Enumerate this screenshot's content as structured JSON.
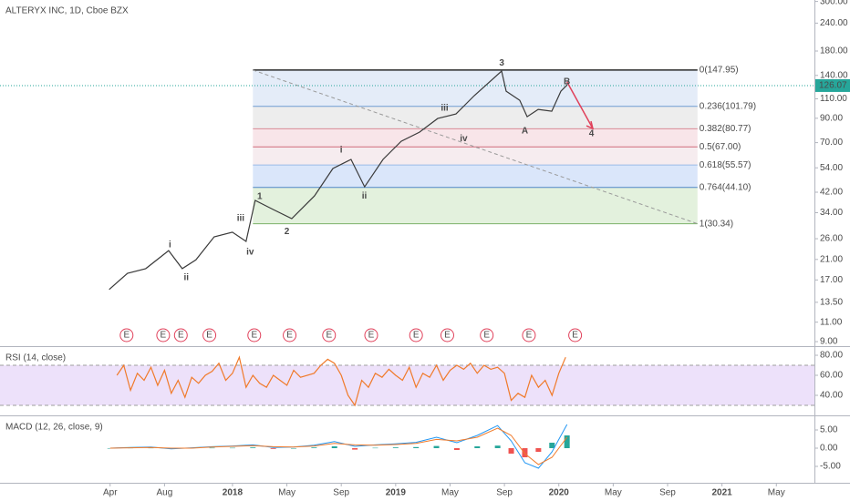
{
  "chart_data": [
    {
      "type": "line",
      "title": "ALTERYX INC, 1D, Cboe BZX",
      "log": true,
      "color": "#3a3a3a",
      "xlim": [
        -8.1,
        51.8
      ],
      "xticks": [
        {
          "value": 0,
          "label": "Apr"
        },
        {
          "value": 4,
          "label": "Aug"
        },
        {
          "value": 9,
          "label": "2018"
        },
        {
          "value": 13,
          "label": "May"
        },
        {
          "value": 17,
          "label": "Sep"
        },
        {
          "value": 21,
          "label": "2019"
        },
        {
          "value": 25,
          "label": "May"
        },
        {
          "value": 29,
          "label": "Sep"
        },
        {
          "value": 33,
          "label": "2020"
        },
        {
          "value": 37,
          "label": "May"
        },
        {
          "value": 41,
          "label": "Sep"
        },
        {
          "value": 45,
          "label": "2021"
        },
        {
          "value": 49,
          "label": "May"
        }
      ],
      "ylim": [
        8.59,
        304.6
      ],
      "yticks": [
        {
          "value": 9,
          "label": "9.00"
        },
        {
          "value": 11,
          "label": "11.00"
        },
        {
          "value": 13.5,
          "label": "13.50"
        },
        {
          "value": 17,
          "label": "17.00"
        },
        {
          "value": 21,
          "label": "21.00"
        },
        {
          "value": 26,
          "label": "26.00"
        },
        {
          "value": 34,
          "label": "34.00"
        },
        {
          "value": 42,
          "label": "42.00"
        },
        {
          "value": 54,
          "label": "54.00"
        },
        {
          "value": 70,
          "label": "70.00"
        },
        {
          "value": 90,
          "label": "90.00"
        },
        {
          "value": 110,
          "label": "110.00"
        },
        {
          "value": 140,
          "label": "140.00"
        },
        {
          "value": 180,
          "label": "180.00"
        },
        {
          "value": 240,
          "label": "240.00"
        },
        {
          "value": 300,
          "label": "300.00"
        }
      ],
      "x": [
        -0.07,
        1.28,
        2.62,
        4.3,
        5.3,
        6.31,
        7.65,
        8.99,
        10.0,
        10.67,
        12.01,
        13.36,
        15.03,
        16.38,
        17.72,
        18.72,
        20.07,
        21.41,
        22.75,
        24.09,
        25.44,
        26.78,
        28.79,
        29.13,
        30.13,
        30.67,
        31.48,
        32.48,
        33.15,
        33.62
      ],
      "values": [
        15.4,
        18.2,
        19.1,
        23.0,
        19.1,
        20.9,
        26.5,
        27.8,
        25.3,
        38.6,
        35.1,
        32.0,
        40.4,
        53.6,
        58.9,
        44.4,
        58.9,
        71.0,
        78.0,
        89.8,
        94.1,
        113.6,
        146.4,
        119.0,
        108.3,
        91.5,
        98.6,
        96.8,
        119.0,
        127.1
      ],
      "last_price": {
        "value": 126.07,
        "color": "#26a69a"
      },
      "fib": {
        "x": [
          10.5,
          43.2
        ],
        "levels": [
          {
            "value": 147.95,
            "label": "0(147.95)",
            "color": "#2b2b2b",
            "fill": "#e4ecf8"
          },
          {
            "value": 101.79,
            "label": "0.236(101.79)",
            "color": "#6f9bd1",
            "fill": "#ededed"
          },
          {
            "value": 80.77,
            "label": "0.382(80.77)",
            "color": "#d98a96",
            "fill": "#f8e5e9"
          },
          {
            "value": 67.0,
            "label": "0.5(67.00)",
            "color": "#d06a7a",
            "fill": "#f6ecef"
          },
          {
            "value": 55.57,
            "label": "0.618(55.57)",
            "color": "#9bbbe6",
            "fill": "#dae6fa"
          },
          {
            "value": 44.1,
            "label": "0.764(44.10)",
            "color": "#4f86c6",
            "fill": "#e3f1dd"
          },
          {
            "value": 30.34,
            "label": "1(30.34)",
            "color": "#7cb26a"
          }
        ]
      },
      "trend_line": {
        "x": [
          10.5,
          43.2
        ],
        "y": [
          147.95,
          30.34
        ],
        "color": "#9a9a9a"
      },
      "projection": {
        "x": [
          33.6,
          35.5
        ],
        "y": [
          131,
          81
        ],
        "color": "#e0405a"
      },
      "annotation_color": "#1c1c8f",
      "annotations": [
        {
          "text": "i",
          "x": 4.4,
          "y": 24.4
        },
        {
          "text": "ii",
          "x": 5.6,
          "y": 17.4
        },
        {
          "text": "iii",
          "x": 9.6,
          "y": 32
        },
        {
          "text": "iv",
          "x": 10.3,
          "y": 22.6
        },
        {
          "text": "1",
          "x": 11.0,
          "y": 40.2
        },
        {
          "text": "2",
          "x": 13.0,
          "y": 28
        },
        {
          "text": "i",
          "x": 17.0,
          "y": 64.7
        },
        {
          "text": "ii",
          "x": 18.7,
          "y": 40.4
        },
        {
          "text": "iii",
          "x": 24.6,
          "y": 99.6
        },
        {
          "text": "iv",
          "x": 26.0,
          "y": 73
        },
        {
          "text": "3",
          "x": 28.8,
          "y": 159
        },
        {
          "text": "A",
          "x": 30.5,
          "y": 79
        },
        {
          "text": "B",
          "x": 33.6,
          "y": 131
        },
        {
          "text": "4",
          "x": 35.4,
          "y": 76.6
        }
      ],
      "earnings": {
        "label": "E",
        "color": "#e0405a",
        "x": [
          1.21,
          3.9,
          5.2,
          7.3,
          10.6,
          13.2,
          16.1,
          19.2,
          22.5,
          24.8,
          27.7,
          30.8,
          34.2
        ]
      }
    },
    {
      "type": "line",
      "title": "RSI (14, close)",
      "color": "#f07a2a",
      "ylim": [
        20,
        88.2
      ],
      "yticks": [
        {
          "value": 40,
          "label": "40.00"
        },
        {
          "value": 60,
          "label": "60.00"
        },
        {
          "value": 80,
          "label": "80.00"
        }
      ],
      "band": [
        30,
        70
      ],
      "band_color": "#ede1fa",
      "x": [
        0.5,
        1,
        1.5,
        2,
        2.5,
        3,
        3.5,
        4,
        4.5,
        5,
        5.5,
        6,
        6.5,
        7,
        7.5,
        8,
        8.5,
        9,
        9.5,
        10,
        10.5,
        11,
        11.5,
        12,
        12.5,
        13,
        13.5,
        14,
        15,
        15.5,
        16,
        16.5,
        17,
        17.5,
        18,
        18.5,
        19,
        19.5,
        20,
        20.5,
        21,
        21.5,
        22,
        22.5,
        23,
        23.5,
        24,
        24.5,
        25,
        25.5,
        26,
        26.5,
        27,
        27.5,
        28,
        28.5,
        29,
        29.5,
        30,
        30.5,
        31,
        31.5,
        32,
        32.5,
        33,
        33.5
      ],
      "values": [
        60,
        70,
        45,
        62,
        55,
        68,
        50,
        65,
        42,
        55,
        38,
        58,
        52,
        60,
        64,
        72,
        55,
        62,
        78,
        48,
        60,
        52,
        48,
        60,
        55,
        50,
        65,
        58,
        62,
        70,
        76,
        72,
        60,
        40,
        30,
        55,
        48,
        62,
        58,
        66,
        60,
        55,
        68,
        48,
        62,
        58,
        70,
        55,
        65,
        70,
        66,
        72,
        62,
        70,
        66,
        68,
        62,
        35,
        42,
        38,
        60,
        48,
        55,
        40,
        62,
        78
      ]
    },
    {
      "type": "line",
      "title": "MACD (12, 26, close, 9)",
      "ylim": [
        -9.5,
        8.75
      ],
      "yticks": [
        {
          "value": -5,
          "label": "-5.00"
        },
        {
          "value": 0,
          "label": "0.00"
        },
        {
          "value": 5,
          "label": "5.00"
        }
      ],
      "x": [
        0,
        1.5,
        3,
        4.5,
        6,
        7.5,
        9,
        10.5,
        12,
        13.5,
        15,
        16.5,
        18,
        19.5,
        21,
        22.5,
        24,
        25.5,
        27,
        28.5,
        29.5,
        30.5,
        31.5,
        32.5,
        33.6
      ],
      "series": [
        {
          "type": "bar",
          "color": "#26a69a",
          "negative_color": "#ef5350",
          "values": [
            0,
            0.1,
            0.1,
            -0.2,
            0.1,
            0.1,
            0.1,
            0.2,
            -0.2,
            0,
            0.2,
            0.5,
            -0.4,
            0.1,
            0.2,
            0.3,
            0.6,
            -0.5,
            0.5,
            0.7,
            -1.5,
            -2.5,
            -1,
            1.5,
            3.5
          ]
        },
        {
          "color": "#2196f3",
          "values": [
            0,
            0.2,
            0.3,
            -0.2,
            0.1,
            0.4,
            0.6,
            0.9,
            0.2,
            0.3,
            0.8,
            1.8,
            0.5,
            0.9,
            1.2,
            1.6,
            3,
            1.5,
            3.5,
            6.2,
            2,
            -4,
            -5.5,
            -1,
            6.5
          ]
        },
        {
          "color": "#f07a2a",
          "values": [
            0,
            0.1,
            0.2,
            0,
            0,
            0.3,
            0.5,
            0.7,
            0.4,
            0.3,
            0.6,
            1.3,
            0.9,
            0.8,
            1.0,
            1.3,
            2.4,
            2.0,
            3.0,
            5.5,
            3.5,
            -1.5,
            -4.5,
            -2.5,
            3
          ]
        }
      ]
    }
  ]
}
